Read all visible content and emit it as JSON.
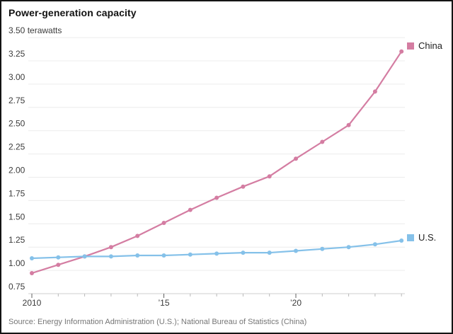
{
  "title": "Power-generation capacity",
  "source": "Source: Energy Information Administration (U.S.); National Bureau of Statistics (China)",
  "colors": {
    "china_line": "#d47da2",
    "us_line": "#85c1e9",
    "gridline": "#ececec",
    "axis_line": "#cfcfcf",
    "tick_minor": "#b8b8b8",
    "tick_major": "#5f5f5f",
    "title_text": "#111111",
    "axis_text": "#3b3b3b",
    "source_text": "#767676",
    "background": "#ffffff",
    "frame_border": "#141414"
  },
  "chart_data": {
    "type": "line",
    "title": "Power-generation capacity",
    "y_unit": "terawatts",
    "y_top_label": "3.50 terawatts",
    "x": [
      2010,
      2011,
      2012,
      2013,
      2014,
      2015,
      2016,
      2017,
      2018,
      2019,
      2020,
      2021,
      2022,
      2023,
      2024
    ],
    "x_tick_labels": {
      "2010": "2010",
      "2015": "’15",
      "2020": "’20"
    },
    "y_ticks": [
      0.75,
      1.0,
      1.25,
      1.5,
      1.75,
      2.0,
      2.25,
      2.5,
      2.75,
      3.0,
      3.25,
      3.5
    ],
    "ylim": [
      0.75,
      3.5
    ],
    "grid": true,
    "legend_position": "right of line ends",
    "series": [
      {
        "name": "China",
        "color": "#d47da2",
        "values": [
          0.97,
          1.06,
          1.15,
          1.25,
          1.37,
          1.51,
          1.65,
          1.78,
          1.9,
          2.01,
          2.2,
          2.38,
          2.56,
          2.92,
          3.35
        ]
      },
      {
        "name": "U.S.",
        "color": "#85c1e9",
        "values": [
          1.13,
          1.14,
          1.15,
          1.15,
          1.16,
          1.16,
          1.17,
          1.18,
          1.19,
          1.19,
          1.21,
          1.23,
          1.25,
          1.28,
          1.32
        ]
      }
    ]
  },
  "legend": {
    "china_label": "China",
    "us_label": "U.S."
  }
}
